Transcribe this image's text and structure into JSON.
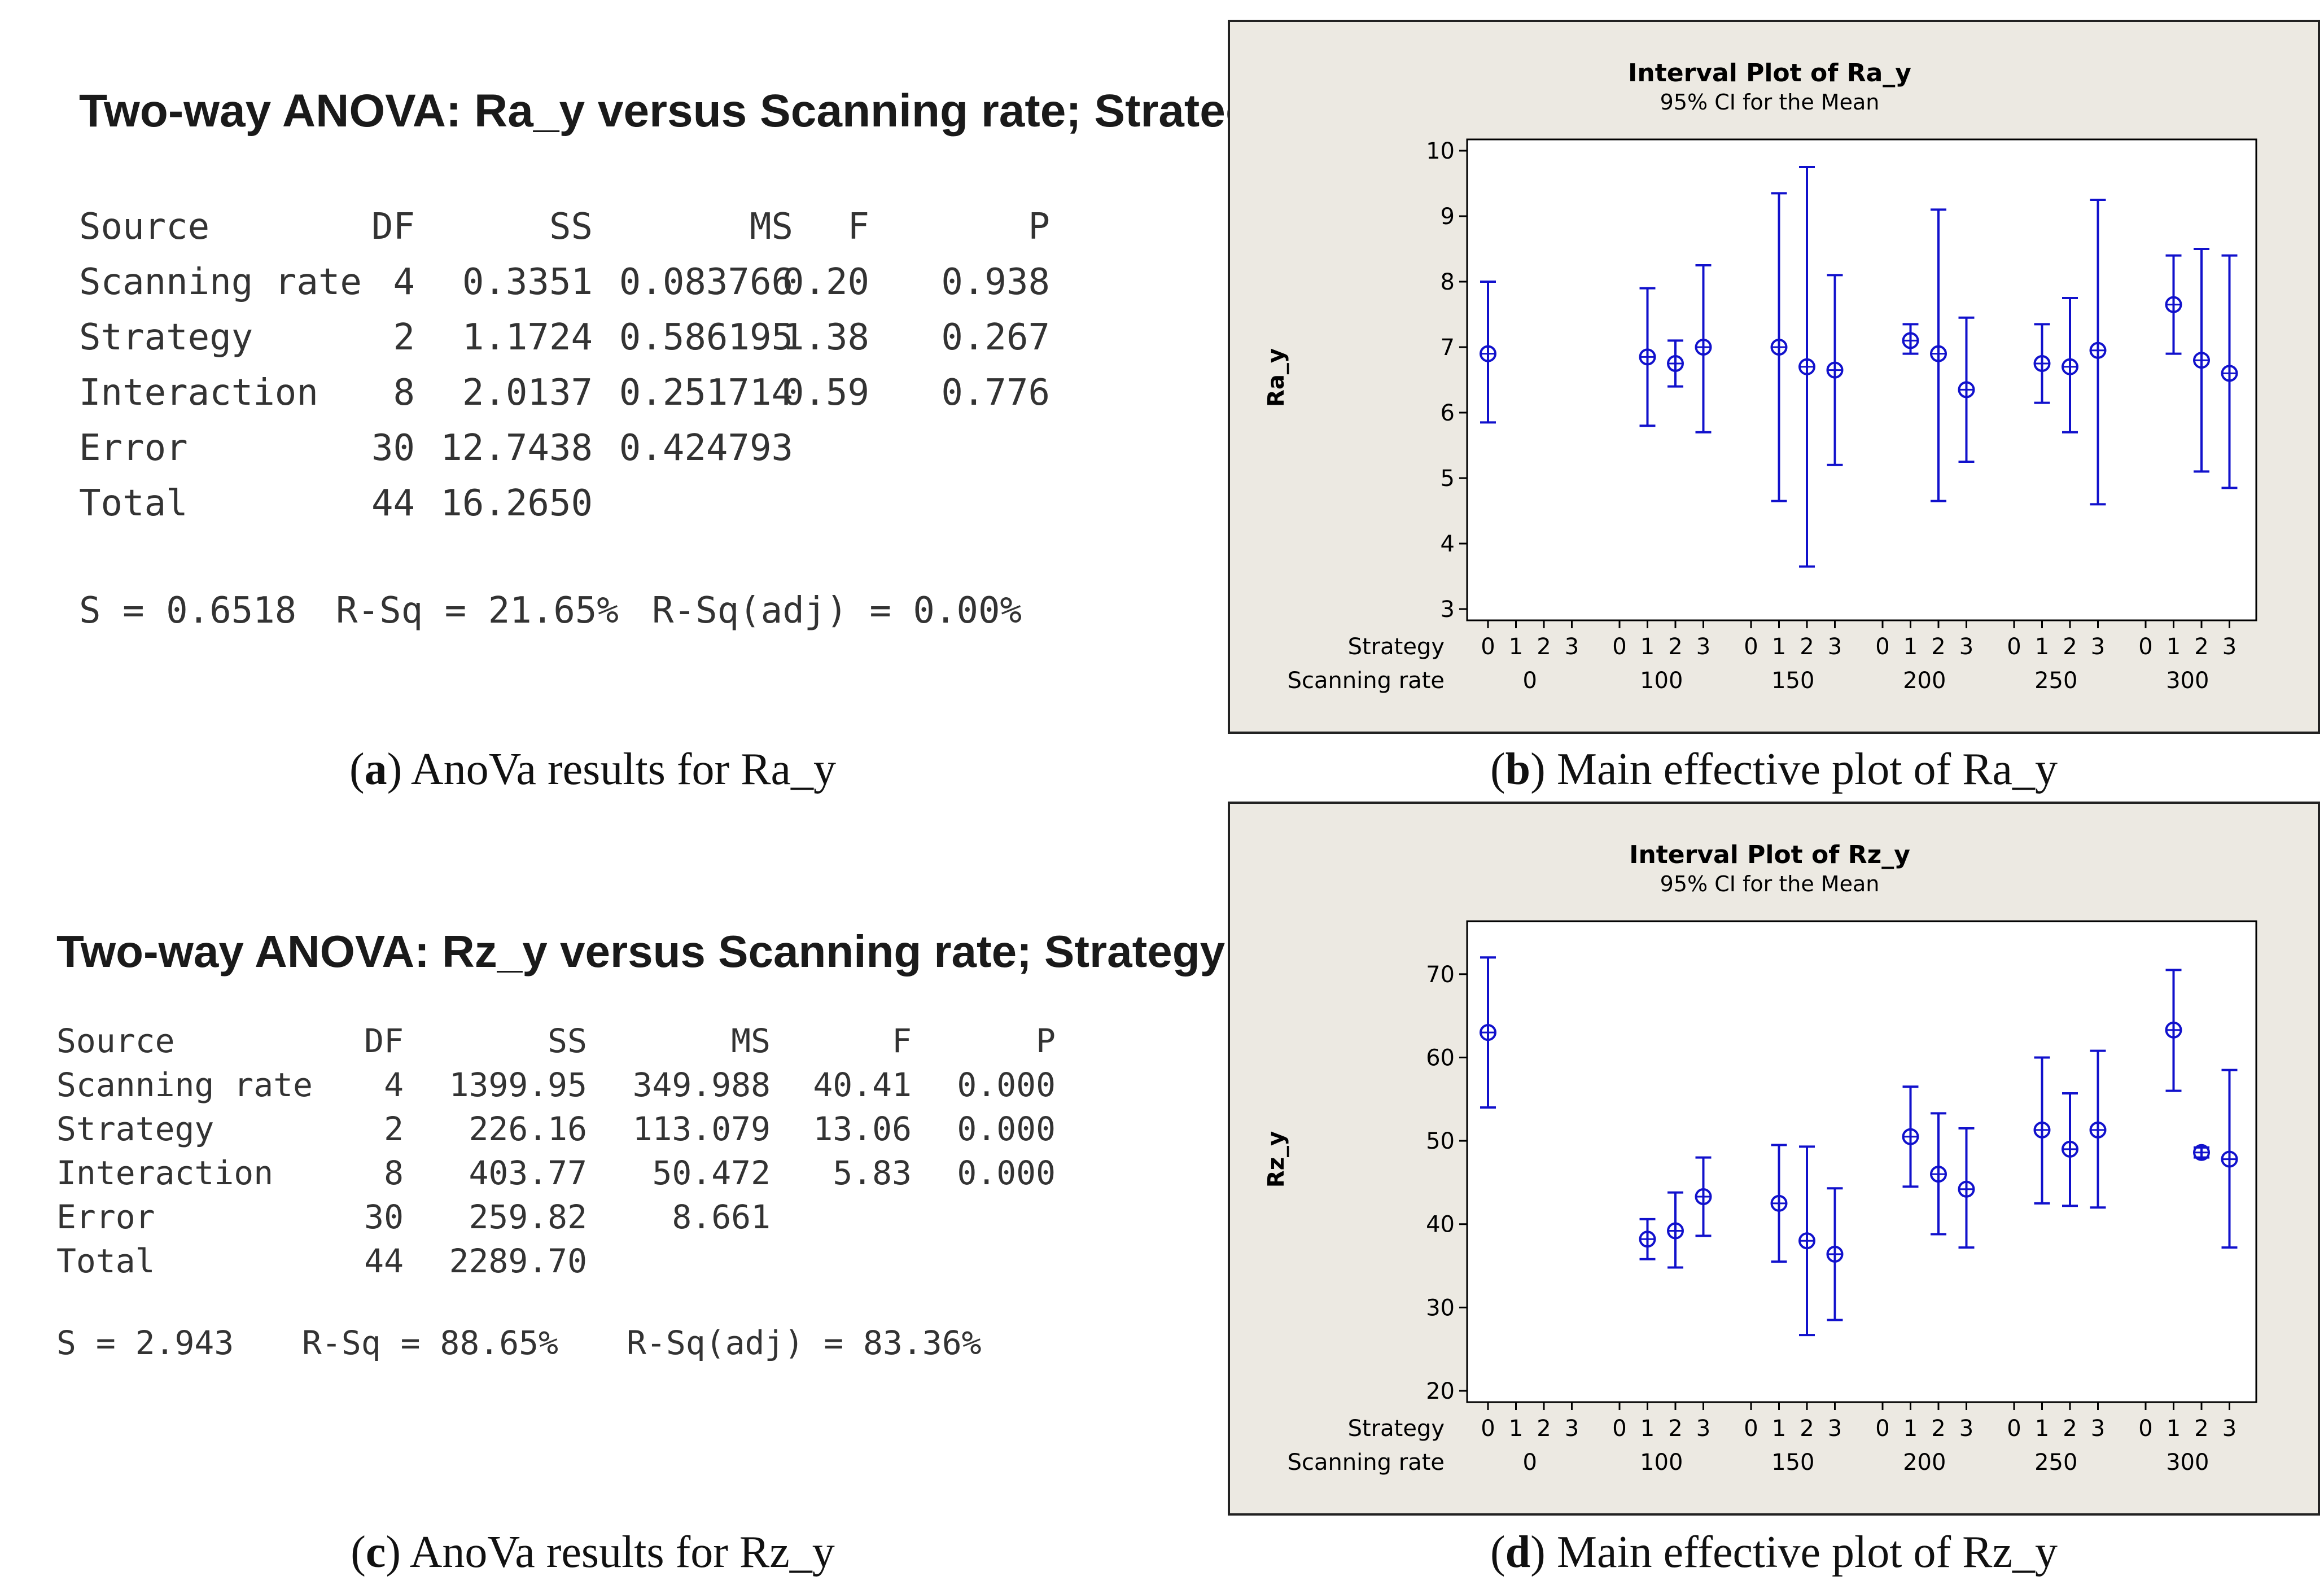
{
  "panel_a": {
    "title": "Two-way ANOVA: Ra_y versus Scanning rate; Strategy",
    "headers": [
      "Source",
      "DF",
      "SS",
      "MS",
      "F",
      "P"
    ],
    "rows": [
      [
        "Scanning rate",
        "4",
        "0.3351",
        "0.083766",
        "0.20",
        "0.938"
      ],
      [
        "Strategy",
        "2",
        "1.1724",
        "0.586195",
        "1.38",
        "0.267"
      ],
      [
        "Interaction",
        "8",
        "2.0137",
        "0.251714",
        "0.59",
        "0.776"
      ],
      [
        "Error",
        "30",
        "12.7438",
        "0.424793",
        "",
        ""
      ],
      [
        "Total",
        "44",
        "16.2650",
        "",
        "",
        ""
      ]
    ],
    "fit_s": "S = 0.6518",
    "fit_rsq": "R-Sq = 21.65%",
    "fit_rsqadj": "R-Sq(adj) = 0.00%",
    "caption_letter": "a",
    "caption_text": "AnoVa results for Ra_y"
  },
  "panel_c": {
    "title": "Two-way ANOVA: Rz_y versus Scanning rate; Strategy",
    "headers": [
      "Source",
      "DF",
      "SS",
      "MS",
      "F",
      "P"
    ],
    "rows": [
      [
        "Scanning rate",
        "4",
        "1399.95",
        "349.988",
        "40.41",
        "0.000"
      ],
      [
        "Strategy",
        "2",
        "226.16",
        "113.079",
        "13.06",
        "0.000"
      ],
      [
        "Interaction",
        "8",
        "403.77",
        "50.472",
        "5.83",
        "0.000"
      ],
      [
        "Error",
        "30",
        "259.82",
        "8.661",
        "",
        ""
      ],
      [
        "Total",
        "44",
        "2289.70",
        "",
        "",
        ""
      ]
    ],
    "fit_s": "S = 2.943",
    "fit_rsq": "R-Sq = 88.65%",
    "fit_rsqadj": "R-Sq(adj) = 83.36%",
    "caption_letter": "c",
    "caption_text": "AnoVa results for Rz_y"
  },
  "panel_b": {
    "caption_letter": "b",
    "caption_text": "Main effective plot of Ra_y"
  },
  "panel_d": {
    "caption_letter": "d",
    "caption_text": "Main effective plot of Rz_y"
  },
  "chart_data": [
    {
      "type": "interval",
      "title": "Interval Plot of Ra_y",
      "subtitle": "95% CI for the Mean",
      "ylabel": "Ra_y",
      "ylim": [
        3,
        10
      ],
      "yticks": [
        3,
        4,
        5,
        6,
        7,
        8,
        9,
        10
      ],
      "row_label_strategy": "Strategy",
      "row_label_rate": "Scanning rate",
      "strategy_levels": [
        "0",
        "1",
        "2",
        "3"
      ],
      "rate_groups": [
        "0",
        "100",
        "150",
        "200",
        "250",
        "300"
      ],
      "color": "#1111cc",
      "points": [
        {
          "rate": "0",
          "strategy": 0,
          "mean": 6.9,
          "lower": 5.85,
          "upper": 8.0
        },
        {
          "rate": "100",
          "strategy": 1,
          "mean": 6.85,
          "lower": 5.8,
          "upper": 7.9
        },
        {
          "rate": "100",
          "strategy": 2,
          "mean": 6.75,
          "lower": 6.4,
          "upper": 7.1
        },
        {
          "rate": "100",
          "strategy": 3,
          "mean": 7.0,
          "lower": 5.7,
          "upper": 8.25
        },
        {
          "rate": "150",
          "strategy": 1,
          "mean": 7.0,
          "lower": 4.65,
          "upper": 9.35
        },
        {
          "rate": "150",
          "strategy": 2,
          "mean": 6.7,
          "lower": 3.65,
          "upper": 9.75
        },
        {
          "rate": "150",
          "strategy": 3,
          "mean": 6.65,
          "lower": 5.2,
          "upper": 8.1
        },
        {
          "rate": "200",
          "strategy": 1,
          "mean": 7.1,
          "lower": 6.9,
          "upper": 7.35
        },
        {
          "rate": "200",
          "strategy": 2,
          "mean": 6.9,
          "lower": 4.65,
          "upper": 9.1
        },
        {
          "rate": "200",
          "strategy": 3,
          "mean": 6.35,
          "lower": 5.25,
          "upper": 7.45
        },
        {
          "rate": "250",
          "strategy": 1,
          "mean": 6.75,
          "lower": 6.15,
          "upper": 7.35
        },
        {
          "rate": "250",
          "strategy": 2,
          "mean": 6.7,
          "lower": 5.7,
          "upper": 7.75
        },
        {
          "rate": "250",
          "strategy": 3,
          "mean": 6.95,
          "lower": 4.6,
          "upper": 9.25
        },
        {
          "rate": "300",
          "strategy": 1,
          "mean": 7.65,
          "lower": 6.9,
          "upper": 8.4
        },
        {
          "rate": "300",
          "strategy": 2,
          "mean": 6.8,
          "lower": 5.1,
          "upper": 8.5
        },
        {
          "rate": "300",
          "strategy": 3,
          "mean": 6.6,
          "lower": 4.85,
          "upper": 8.4
        }
      ]
    },
    {
      "type": "interval",
      "title": "Interval Plot of Rz_y",
      "subtitle": "95% CI for the Mean",
      "ylabel": "Rz_y",
      "ylim": [
        20,
        75
      ],
      "yticks": [
        20,
        30,
        40,
        50,
        60,
        70
      ],
      "row_label_strategy": "Strategy",
      "row_label_rate": "Scanning rate",
      "strategy_levels": [
        "0",
        "1",
        "2",
        "3"
      ],
      "rate_groups": [
        "0",
        "100",
        "150",
        "200",
        "250",
        "300"
      ],
      "color": "#1111cc",
      "points": [
        {
          "rate": "0",
          "strategy": 0,
          "mean": 63.0,
          "lower": 54.0,
          "upper": 72.0
        },
        {
          "rate": "100",
          "strategy": 1,
          "mean": 38.2,
          "lower": 35.8,
          "upper": 40.6
        },
        {
          "rate": "100",
          "strategy": 2,
          "mean": 39.2,
          "lower": 34.8,
          "upper": 43.8
        },
        {
          "rate": "100",
          "strategy": 3,
          "mean": 43.3,
          "lower": 38.6,
          "upper": 48.0
        },
        {
          "rate": "150",
          "strategy": 1,
          "mean": 42.5,
          "lower": 35.5,
          "upper": 49.5
        },
        {
          "rate": "150",
          "strategy": 2,
          "mean": 38.0,
          "lower": 26.7,
          "upper": 49.3
        },
        {
          "rate": "150",
          "strategy": 3,
          "mean": 36.4,
          "lower": 28.5,
          "upper": 44.3
        },
        {
          "rate": "200",
          "strategy": 1,
          "mean": 50.5,
          "lower": 44.5,
          "upper": 56.5
        },
        {
          "rate": "200",
          "strategy": 2,
          "mean": 46.0,
          "lower": 38.8,
          "upper": 53.3
        },
        {
          "rate": "200",
          "strategy": 3,
          "mean": 44.2,
          "lower": 37.2,
          "upper": 51.5
        },
        {
          "rate": "250",
          "strategy": 1,
          "mean": 51.3,
          "lower": 42.5,
          "upper": 60.0
        },
        {
          "rate": "250",
          "strategy": 2,
          "mean": 49.0,
          "lower": 42.2,
          "upper": 55.7
        },
        {
          "rate": "250",
          "strategy": 3,
          "mean": 51.3,
          "lower": 42.0,
          "upper": 60.8
        },
        {
          "rate": "300",
          "strategy": 1,
          "mean": 63.3,
          "lower": 56.0,
          "upper": 70.5
        },
        {
          "rate": "300",
          "strategy": 2,
          "mean": 48.6,
          "lower": 48.0,
          "upper": 49.2
        },
        {
          "rate": "300",
          "strategy": 3,
          "mean": 47.8,
          "lower": 37.2,
          "upper": 58.5
        }
      ]
    }
  ]
}
